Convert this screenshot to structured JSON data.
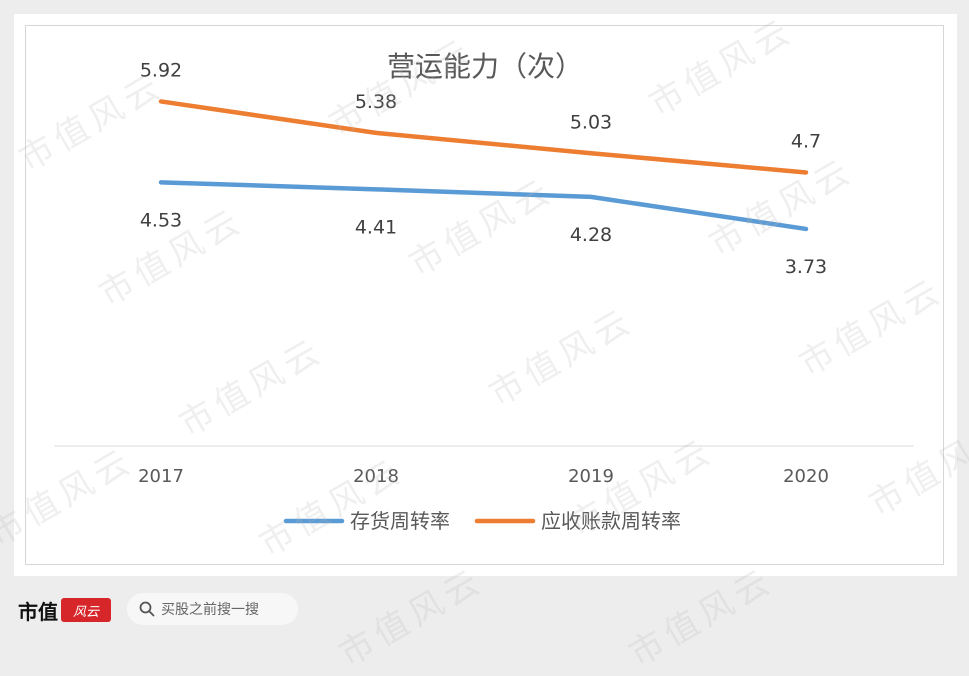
{
  "chart_data": {
    "type": "line",
    "title": "营运能力（次）",
    "categories": [
      "2017",
      "2018",
      "2019",
      "2020"
    ],
    "series": [
      {
        "name": "存货周转率",
        "values": [
          4.53,
          4.41,
          4.28,
          3.73
        ],
        "labels": [
          "4.53",
          "4.41",
          "4.28",
          "3.73"
        ],
        "color": "#5b9bd5",
        "label_position": "below"
      },
      {
        "name": "应收账款周转率",
        "values": [
          5.92,
          5.38,
          5.03,
          4.7
        ],
        "labels": [
          "5.92",
          "5.38",
          "5.03",
          "4.7"
        ],
        "color": "#ed7d31",
        "label_position": "above"
      }
    ],
    "ylim": [
      0,
      7
    ],
    "grid": false,
    "legend": "bottom"
  },
  "watermark_text": "市值风云",
  "footer": {
    "brand_text": "市值",
    "brand_seal": "风云",
    "search_placeholder": "买股之前搜一搜"
  },
  "colors": {
    "series_blue": "#5b9bd5",
    "series_orange": "#ed7d31",
    "brand_red": "#d7262a"
  }
}
